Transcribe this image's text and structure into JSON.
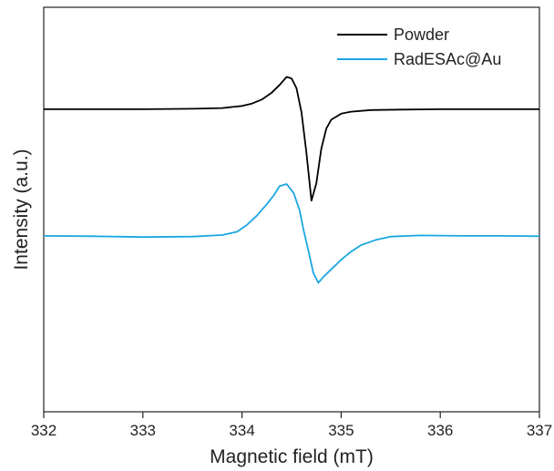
{
  "chart_data": {
    "type": "line",
    "title": "",
    "xlabel": "Magnetic field (mT)",
    "ylabel": "Intensity (a.u.)",
    "xlim": [
      332,
      337
    ],
    "ylim": [
      0,
      1
    ],
    "x_ticks": [
      "332",
      "333",
      "334",
      "335",
      "336",
      "337"
    ],
    "y_ticks_shown": false,
    "grid": false,
    "legend_position": "top-right",
    "series": [
      {
        "name": "Powder",
        "color": "#000000",
        "points": [
          [
            332.0,
            0.748
          ],
          [
            333.0,
            0.748
          ],
          [
            333.5,
            0.749
          ],
          [
            333.8,
            0.751
          ],
          [
            334.0,
            0.756
          ],
          [
            334.1,
            0.762
          ],
          [
            334.2,
            0.772
          ],
          [
            334.3,
            0.789
          ],
          [
            334.38,
            0.808
          ],
          [
            334.45,
            0.828
          ],
          [
            334.5,
            0.824
          ],
          [
            334.55,
            0.8
          ],
          [
            334.6,
            0.74
          ],
          [
            334.65,
            0.64
          ],
          [
            334.7,
            0.522
          ],
          [
            334.75,
            0.565
          ],
          [
            334.8,
            0.65
          ],
          [
            334.85,
            0.7
          ],
          [
            334.9,
            0.722
          ],
          [
            335.0,
            0.737
          ],
          [
            335.1,
            0.742
          ],
          [
            335.3,
            0.746
          ],
          [
            335.6,
            0.747
          ],
          [
            336.0,
            0.748
          ],
          [
            337.0,
            0.748
          ]
        ]
      },
      {
        "name": "RadESAc@Au",
        "color": "#1aa7e0",
        "points": [
          [
            332.0,
            0.435
          ],
          [
            332.5,
            0.434
          ],
          [
            333.0,
            0.432
          ],
          [
            333.5,
            0.433
          ],
          [
            333.8,
            0.437
          ],
          [
            333.95,
            0.445
          ],
          [
            334.05,
            0.462
          ],
          [
            334.15,
            0.485
          ],
          [
            334.25,
            0.513
          ],
          [
            334.32,
            0.535
          ],
          [
            334.38,
            0.558
          ],
          [
            334.45,
            0.563
          ],
          [
            334.52,
            0.541
          ],
          [
            334.58,
            0.499
          ],
          [
            334.62,
            0.45
          ],
          [
            334.67,
            0.398
          ],
          [
            334.72,
            0.343
          ],
          [
            334.77,
            0.319
          ],
          [
            334.82,
            0.333
          ],
          [
            334.9,
            0.352
          ],
          [
            335.0,
            0.376
          ],
          [
            335.1,
            0.396
          ],
          [
            335.2,
            0.412
          ],
          [
            335.35,
            0.425
          ],
          [
            335.5,
            0.433
          ],
          [
            335.8,
            0.436
          ],
          [
            336.2,
            0.435
          ],
          [
            336.6,
            0.435
          ],
          [
            337.0,
            0.434
          ]
        ]
      }
    ]
  }
}
